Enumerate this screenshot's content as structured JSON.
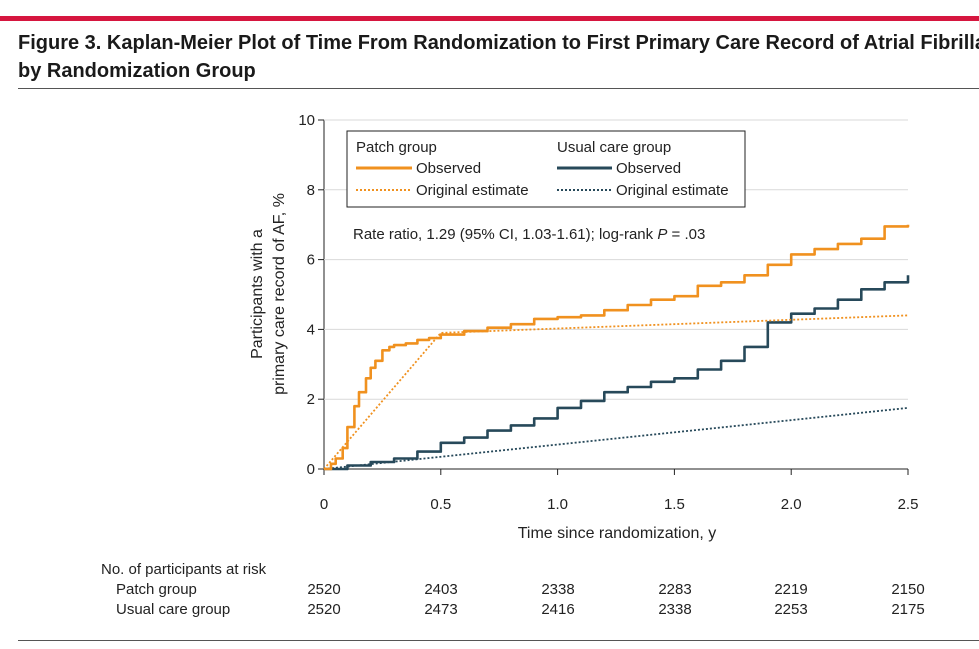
{
  "figure": {
    "title_line1": "Figure 3. Kaplan-Meier Plot of Time From Randomization to First Primary Care Record of Atrial Fibrillation (AF)",
    "title_line2": "by Randomization Group"
  },
  "colors": {
    "accent_bar": "#d6163f",
    "patch": "#f0911f",
    "usual": "#27495a"
  },
  "chart_data": {
    "type": "line",
    "xlabel": "Time since randomization, y",
    "ylabel_line1": "Participants with a",
    "ylabel_line2": "primary care record of AF, %",
    "xlim": [
      0,
      2.5
    ],
    "ylim": [
      0,
      10
    ],
    "x_ticks": [
      0,
      0.5,
      1.0,
      1.5,
      2.0,
      2.5
    ],
    "x_tick_labels": [
      "0",
      "0.5",
      "1.0",
      "1.5",
      "2.0",
      "2.5"
    ],
    "y_ticks": [
      0,
      2,
      4,
      6,
      8,
      10
    ],
    "y_tick_labels": [
      "0",
      "2",
      "4",
      "6",
      "8",
      "10"
    ],
    "legend": {
      "placement": "top-left inside plot",
      "groups": [
        {
          "heading": "Patch group",
          "observed": "Observed",
          "estimate": "Original estimate"
        },
        {
          "heading": "Usual care group",
          "observed": "Observed",
          "estimate": "Original estimate"
        }
      ]
    },
    "annotation_prefix": "Rate ratio, 1.29 (95% CI, 1.03-1.61); log-rank ",
    "annotation_p": "P",
    "annotation_suffix": " = .03",
    "series": [
      {
        "group": "Patch group",
        "style": "observed",
        "x": [
          0,
          0.03,
          0.05,
          0.08,
          0.1,
          0.13,
          0.15,
          0.18,
          0.2,
          0.22,
          0.25,
          0.28,
          0.3,
          0.35,
          0.4,
          0.45,
          0.5,
          0.6,
          0.7,
          0.8,
          0.9,
          1.0,
          1.1,
          1.2,
          1.3,
          1.4,
          1.5,
          1.6,
          1.7,
          1.8,
          1.9,
          2.0,
          2.1,
          2.2,
          2.3,
          2.4,
          2.5
        ],
        "y": [
          0,
          0.15,
          0.3,
          0.6,
          1.2,
          1.8,
          2.2,
          2.6,
          2.9,
          3.1,
          3.4,
          3.5,
          3.55,
          3.6,
          3.7,
          3.75,
          3.85,
          3.95,
          4.05,
          4.15,
          4.3,
          4.35,
          4.4,
          4.55,
          4.7,
          4.85,
          4.95,
          5.25,
          5.35,
          5.55,
          5.85,
          6.15,
          6.3,
          6.45,
          6.6,
          6.95,
          7.0
        ]
      },
      {
        "group": "Patch group",
        "style": "original estimate",
        "x": [
          0,
          0.5,
          2.5
        ],
        "y": [
          0,
          3.9,
          4.4
        ]
      },
      {
        "group": "Usual care group",
        "style": "observed",
        "x": [
          0,
          0.1,
          0.2,
          0.3,
          0.4,
          0.5,
          0.6,
          0.7,
          0.8,
          0.9,
          1.0,
          1.1,
          1.2,
          1.3,
          1.4,
          1.5,
          1.6,
          1.7,
          1.8,
          1.9,
          2.0,
          2.1,
          2.2,
          2.3,
          2.4,
          2.5
        ],
        "y": [
          0,
          0.1,
          0.2,
          0.3,
          0.5,
          0.75,
          0.9,
          1.1,
          1.25,
          1.45,
          1.75,
          1.95,
          2.2,
          2.35,
          2.5,
          2.6,
          2.85,
          3.1,
          3.5,
          4.2,
          4.45,
          4.6,
          4.85,
          5.15,
          5.35,
          5.55
        ]
      },
      {
        "group": "Usual care group",
        "style": "original estimate",
        "x": [
          0,
          2.5
        ],
        "y": [
          0,
          1.75
        ]
      }
    ]
  },
  "risk_table": {
    "title": "No. of participants at risk",
    "rows": [
      {
        "label": "Patch group",
        "values": [
          "2520",
          "2403",
          "2338",
          "2283",
          "2219",
          "2150"
        ]
      },
      {
        "label": "Usual care group",
        "values": [
          "2520",
          "2473",
          "2416",
          "2338",
          "2253",
          "2175"
        ]
      }
    ]
  }
}
